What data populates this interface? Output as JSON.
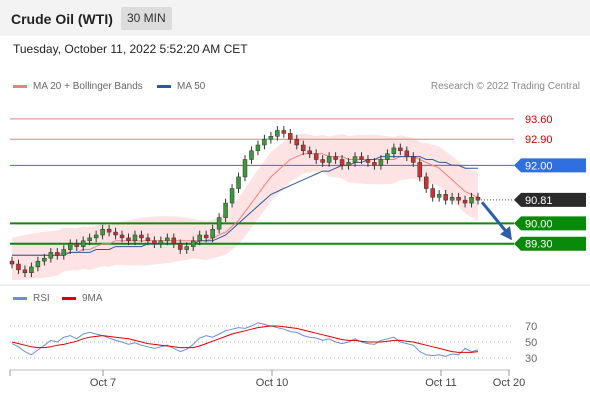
{
  "header": {
    "title": "Crude Oil (WTI)",
    "timeframe": "30 MIN"
  },
  "timestamp": "Tuesday, October 11, 2022 5:52:20 AM CET",
  "legend": {
    "ma_bb": {
      "label": "MA 20 + Bollinger Bands",
      "color": "#f08080"
    },
    "ma50": {
      "label": "MA 50",
      "color": "#2f5a9e"
    }
  },
  "credit": "Research © 2022 Trading Central",
  "rsi_legend": {
    "rsi": {
      "label": "RSI",
      "color": "#6a8fd8"
    },
    "ma9": {
      "label": "9MA",
      "color": "#e00000"
    }
  },
  "chart_data": {
    "type": "candlestick",
    "instrument": "Crude Oil (WTI)",
    "ylim": [
      88.05,
      94.25
    ],
    "x_ticks": [
      "Oct 7",
      "Oct 10",
      "Oct 11",
      "Oct 20"
    ],
    "levels": [
      {
        "value": 93.6,
        "label": "93.60",
        "style": "resistance-thin",
        "color": "#e88080"
      },
      {
        "value": 92.9,
        "label": "92.90",
        "style": "resistance-thin",
        "color": "#e88080"
      },
      {
        "value": 92.0,
        "label": "92.00",
        "style": "pivot",
        "color": "#2f6fde"
      },
      {
        "value": 90.81,
        "label": "90.81",
        "style": "last",
        "color": "#2a2a2a"
      },
      {
        "value": 90.0,
        "label": "90.00",
        "style": "support",
        "color": "#0a8a0a"
      },
      {
        "value": 89.3,
        "label": "89.30",
        "style": "support",
        "color": "#0a8a0a"
      }
    ],
    "close_series": [
      88.6,
      88.4,
      88.3,
      88.5,
      88.7,
      88.8,
      89.0,
      88.9,
      89.1,
      89.3,
      89.2,
      89.4,
      89.5,
      89.6,
      89.8,
      89.7,
      89.6,
      89.5,
      89.4,
      89.6,
      89.5,
      89.4,
      89.3,
      89.4,
      89.5,
      89.3,
      89.1,
      89.2,
      89.4,
      89.6,
      89.5,
      89.8,
      90.2,
      90.7,
      91.2,
      91.6,
      92.2,
      92.5,
      92.7,
      92.9,
      93.0,
      93.2,
      93.1,
      92.9,
      92.7,
      92.5,
      92.4,
      92.2,
      92.1,
      92.3,
      92.2,
      92.0,
      92.1,
      92.3,
      92.2,
      92.1,
      92.0,
      92.2,
      92.4,
      92.6,
      92.5,
      92.3,
      92.1,
      91.6,
      91.2,
      90.9,
      91.0,
      90.8,
      90.9,
      90.8,
      90.7,
      90.9,
      90.8
    ],
    "ma20": [
      88.9,
      88.9,
      88.9,
      88.9,
      88.9,
      88.9,
      88.9,
      88.9,
      89.0,
      89.0,
      89.0,
      89.1,
      89.1,
      89.2,
      89.3,
      89.3,
      89.4,
      89.4,
      89.4,
      89.4,
      89.4,
      89.4,
      89.4,
      89.4,
      89.4,
      89.4,
      89.4,
      89.4,
      89.4,
      89.4,
      89.4,
      89.5,
      89.6,
      89.7,
      89.9,
      90.1,
      90.4,
      90.7,
      91.0,
      91.3,
      91.6,
      91.8,
      92.0,
      92.2,
      92.3,
      92.4,
      92.4,
      92.4,
      92.4,
      92.3,
      92.3,
      92.3,
      92.2,
      92.2,
      92.2,
      92.2,
      92.2,
      92.2,
      92.2,
      92.2,
      92.3,
      92.3,
      92.3,
      92.2,
      92.1,
      92.0,
      91.9,
      91.7,
      91.5,
      91.3,
      91.1,
      91.0,
      90.9
    ],
    "ma50": [
      88.9,
      88.9,
      88.9,
      88.9,
      88.9,
      88.9,
      88.9,
      88.9,
      88.9,
      89.0,
      89.0,
      89.0,
      89.0,
      89.1,
      89.1,
      89.1,
      89.2,
      89.2,
      89.2,
      89.2,
      89.2,
      89.3,
      89.3,
      89.3,
      89.3,
      89.3,
      89.3,
      89.3,
      89.3,
      89.4,
      89.4,
      89.4,
      89.5,
      89.6,
      89.8,
      90.0,
      90.2,
      90.4,
      90.6,
      90.8,
      91.0,
      91.1,
      91.2,
      91.3,
      91.4,
      91.5,
      91.6,
      91.7,
      91.8,
      91.8,
      91.9,
      92.0,
      92.0,
      92.1,
      92.1,
      92.2,
      92.2,
      92.3,
      92.3,
      92.3,
      92.3,
      92.3,
      92.3,
      92.3,
      92.2,
      92.2,
      92.1,
      92.1,
      92.0,
      92.0,
      91.9,
      91.9,
      91.9
    ],
    "rsi_panel": {
      "ylim": [
        20,
        80
      ],
      "ticks": [
        70,
        50,
        30
      ],
      "rsi": [
        48,
        44,
        38,
        34,
        40,
        46,
        52,
        50,
        56,
        58,
        54,
        60,
        62,
        60,
        58,
        55,
        52,
        50,
        47,
        49,
        46,
        44,
        42,
        44,
        46,
        42,
        38,
        41,
        47,
        55,
        58,
        56,
        60,
        64,
        66,
        68,
        67,
        70,
        74,
        72,
        70,
        68,
        66,
        63,
        62,
        58,
        56,
        55,
        52,
        54,
        50,
        48,
        50,
        54,
        50,
        48,
        47,
        52,
        54,
        56,
        50,
        48,
        46,
        38,
        34,
        33,
        34,
        32,
        35,
        34,
        42,
        38,
        40
      ],
      "ma9": [
        50,
        48,
        46,
        44,
        43,
        43,
        44,
        46,
        47,
        49,
        51,
        54,
        56,
        57,
        58,
        57,
        56,
        55,
        54,
        52,
        50,
        48,
        47,
        46,
        45,
        44,
        43,
        43,
        43,
        45,
        48,
        51,
        54,
        57,
        60,
        62,
        64,
        66,
        68,
        69,
        70,
        70,
        69,
        68,
        67,
        65,
        63,
        61,
        59,
        57,
        55,
        53,
        52,
        52,
        51,
        50,
        50,
        50,
        51,
        52,
        52,
        51,
        50,
        48,
        46,
        44,
        42,
        40,
        38,
        37,
        37,
        37,
        38
      ]
    }
  }
}
